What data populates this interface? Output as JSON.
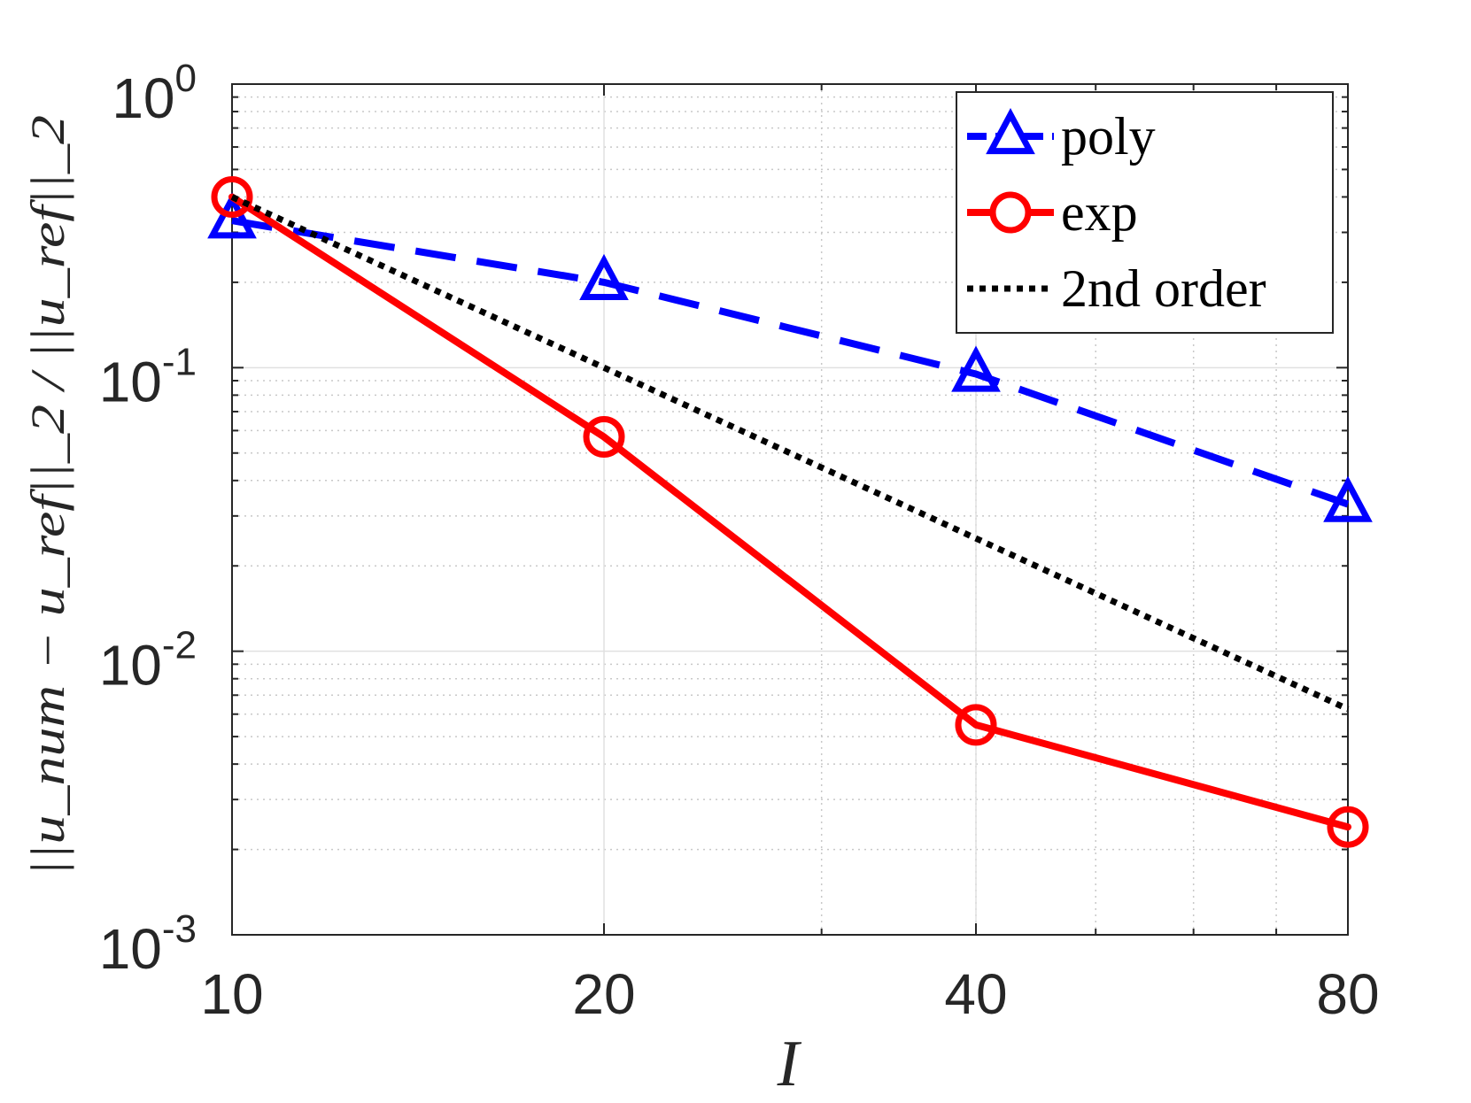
{
  "chart_data": {
    "type": "line",
    "x_scale": "log",
    "y_scale": "log",
    "xlabel": "I",
    "ylabel": "||u_num − u_ref||_2 / ||u_ref||_2",
    "xlim": [
      10,
      80
    ],
    "ylim": [
      0.001,
      1
    ],
    "x_ticks": [
      10,
      20,
      40,
      80
    ],
    "x_tick_labels": [
      "10",
      "20",
      "40",
      "80"
    ],
    "y_ticks": [
      0.001,
      0.01,
      0.1,
      1
    ],
    "y_tick_labels": [
      {
        "base": "10",
        "exp": "-3"
      },
      {
        "base": "10",
        "exp": "-2"
      },
      {
        "base": "10",
        "exp": "-1"
      },
      {
        "base": "10",
        "exp": "0"
      }
    ],
    "grid": true,
    "legend_position": "top-right",
    "series": [
      {
        "name": "poly",
        "x": [
          10,
          20,
          40,
          80
        ],
        "y": [
          0.33,
          0.2,
          0.095,
          0.033
        ],
        "color": "#0000ff",
        "line_style": "dashed",
        "marker": "triangle"
      },
      {
        "name": "exp",
        "x": [
          10,
          20,
          40,
          80
        ],
        "y": [
          0.4,
          0.057,
          0.0055,
          0.0024
        ],
        "color": "#ff0000",
        "line_style": "solid",
        "marker": "circle"
      },
      {
        "name": "2nd order",
        "x": [
          10,
          20,
          40,
          80
        ],
        "y": [
          0.4,
          0.1,
          0.025,
          0.00625
        ],
        "color": "#000000",
        "line_style": "dotted",
        "marker": "none"
      }
    ]
  }
}
